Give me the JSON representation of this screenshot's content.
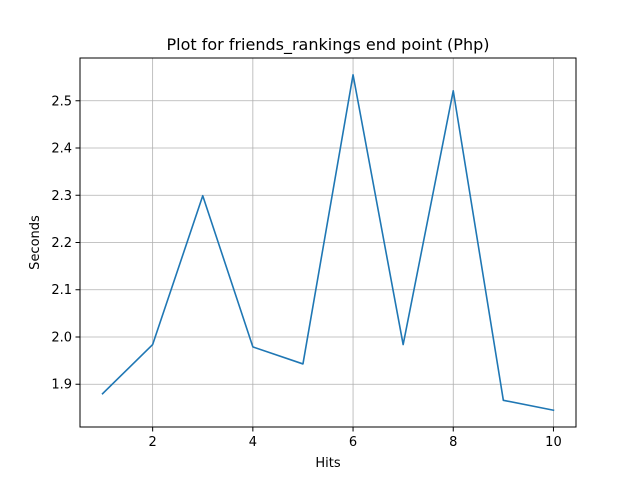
{
  "chart_data": {
    "type": "line",
    "title": "Plot for friends_rankings end point (Php)",
    "xlabel": "Hits",
    "ylabel": "Seconds",
    "x": [
      1,
      2,
      3,
      4,
      5,
      6,
      7,
      8,
      9,
      10
    ],
    "series": [
      {
        "values": [
          1.88,
          1.984,
          2.299,
          1.979,
          1.943,
          2.555,
          1.984,
          2.521,
          1.866,
          1.845
        ]
      }
    ],
    "xlim": [
      0.55,
      10.45
    ],
    "ylim": [
      1.8095,
      2.5905
    ],
    "xticks": [
      2,
      4,
      6,
      8,
      10
    ],
    "yticks": [
      1.9,
      2.0,
      2.1,
      2.2,
      2.3,
      2.4,
      2.5
    ],
    "xtick_labels": [
      "2",
      "4",
      "6",
      "8",
      "10"
    ],
    "ytick_labels": [
      "1.9",
      "2.0",
      "2.1",
      "2.2",
      "2.3",
      "2.4",
      "2.5"
    ],
    "grid": true,
    "legend": "none",
    "colors": {
      "line": "#1f77b4",
      "grid": "#b0b0b0",
      "axes": "#000000"
    }
  }
}
